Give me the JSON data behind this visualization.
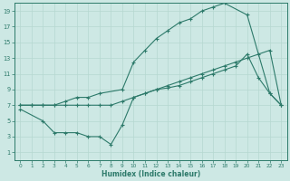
{
  "xlabel": "Humidex (Indice chaleur)",
  "bg_color": "#cde8e4",
  "line_color": "#2d7a6a",
  "grid_color": "#b5d8d0",
  "xlim": [
    -0.5,
    23.5
  ],
  "ylim": [
    0,
    20
  ],
  "xticks": [
    0,
    1,
    2,
    3,
    4,
    5,
    6,
    7,
    8,
    9,
    10,
    11,
    12,
    13,
    14,
    15,
    16,
    17,
    18,
    19,
    20,
    21,
    22,
    23
  ],
  "yticks": [
    1,
    3,
    5,
    7,
    9,
    11,
    13,
    15,
    17,
    19
  ],
  "line1_x": [
    0,
    1,
    2,
    3,
    4,
    5,
    6,
    7,
    8,
    9,
    10,
    11,
    12,
    13,
    14,
    15,
    16,
    17,
    18,
    19,
    20,
    21,
    22,
    23
  ],
  "line1_y": [
    7.0,
    7.0,
    7.0,
    7.0,
    7.0,
    7.0,
    7.0,
    7.0,
    7.0,
    7.5,
    8.0,
    8.5,
    9.0,
    9.5,
    10.0,
    10.5,
    11.0,
    11.5,
    12.0,
    12.5,
    13.0,
    13.5,
    14.0,
    7.0
  ],
  "line2_x": [
    0,
    1,
    2,
    3,
    4,
    5,
    6,
    7,
    9,
    10,
    11,
    12,
    13,
    14,
    15,
    16,
    17,
    18,
    20,
    22,
    23
  ],
  "line2_y": [
    7.0,
    7.0,
    7.0,
    7.0,
    7.5,
    8.0,
    8.0,
    8.5,
    9.0,
    12.5,
    14.0,
    15.5,
    16.5,
    17.5,
    18.0,
    19.0,
    19.5,
    20.0,
    18.5,
    8.5,
    7.0
  ],
  "line3_x": [
    0,
    2,
    3,
    4,
    5,
    6,
    7,
    8,
    9,
    10,
    11,
    12,
    13,
    14,
    15,
    16,
    17,
    18,
    19,
    20,
    21,
    22,
    23
  ],
  "line3_y": [
    6.5,
    5.0,
    3.5,
    3.5,
    3.5,
    3.0,
    3.0,
    2.0,
    4.5,
    8.0,
    8.5,
    9.0,
    9.2,
    9.5,
    10.0,
    10.5,
    11.0,
    11.5,
    12.0,
    13.5,
    10.5,
    8.5,
    7.0
  ]
}
